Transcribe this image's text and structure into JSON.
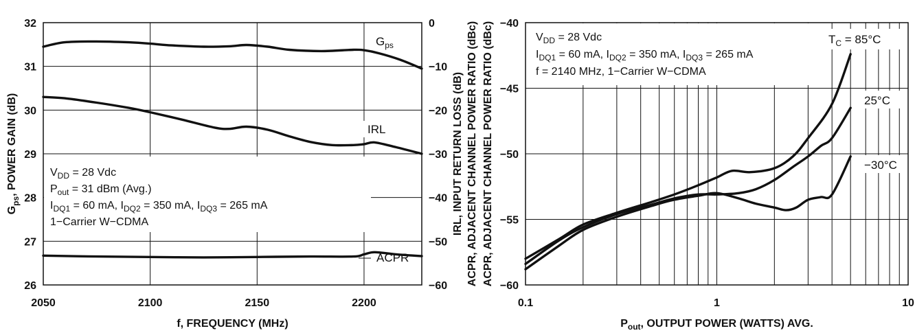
{
  "chart_data": [
    {
      "type": "line",
      "xlabel": "f, FREQUENCY (MHz)",
      "ylabel_left": "G_ps, POWER GAIN (dB)",
      "ylabel_right": [
        "IRL, INPUT RETURN LOSS (dB)",
        "ACPR, ADJACENT CHANNEL POWER RATIO (dBc)"
      ],
      "x_ticks": [
        "2050",
        "2100",
        "2150",
        "2200"
      ],
      "xlim": [
        2050,
        2227
      ],
      "y_left_ticks": [
        "32",
        "31",
        "30",
        "29",
        "28",
        "27",
        "26"
      ],
      "ylim_left": [
        26,
        32
      ],
      "y_right_ticks": [
        "0",
        "−10",
        "−20",
        "−30",
        "−40",
        "−50",
        "−60"
      ],
      "ylim_right": [
        -60,
        0
      ],
      "grid": true,
      "annotations": [
        {
          "lines": [
            [
              "V",
              "DD",
              " = 28 Vdc"
            ],
            [
              "P",
              "out",
              " = 31 dBm (Avg.)"
            ],
            [
              "I",
              "DQ1",
              " = 60 mA, I",
              "DQ2",
              " = 350 mA, I",
              "DQ3",
              " = 265 mA"
            ],
            [
              "1−Carrier W−CDMA"
            ]
          ]
        }
      ],
      "series": [
        {
          "name": "G_ps",
          "label": [
            "G",
            "ps"
          ],
          "axis": "left",
          "x": [
            2050,
            2060,
            2075,
            2090,
            2100,
            2110,
            2125,
            2137,
            2145,
            2155,
            2165,
            2180,
            2195,
            2200,
            2207,
            2217,
            2227
          ],
          "y": [
            31.45,
            31.55,
            31.57,
            31.55,
            31.52,
            31.48,
            31.45,
            31.46,
            31.49,
            31.45,
            31.38,
            31.35,
            31.38,
            31.37,
            31.3,
            31.15,
            30.95
          ]
        },
        {
          "name": "IRL",
          "label": [
            "IRL"
          ],
          "axis": "right",
          "x": [
            2050,
            2060,
            2075,
            2090,
            2100,
            2115,
            2130,
            2137,
            2145,
            2155,
            2165,
            2175,
            2185,
            2195,
            2200,
            2205,
            2215,
            2227
          ],
          "y": [
            -17.0,
            -17.3,
            -18.3,
            -19.5,
            -20.5,
            -22.2,
            -24.0,
            -24.3,
            -23.8,
            -24.5,
            -26.0,
            -27.3,
            -28.0,
            -28.0,
            -27.8,
            -27.4,
            -28.5,
            -30.0
          ]
        },
        {
          "name": "ACPR",
          "label": [
            "ACPR"
          ],
          "axis": "right",
          "x": [
            2050,
            2075,
            2100,
            2125,
            2150,
            2175,
            2195,
            2200,
            2205,
            2215,
            2227
          ],
          "y": [
            -53.3,
            -53.5,
            -53.6,
            -53.7,
            -53.6,
            -53.5,
            -53.5,
            -53.0,
            -52.5,
            -53.0,
            -53.4
          ]
        }
      ]
    },
    {
      "type": "line",
      "x_scale": "log",
      "xlabel": "P_out, OUTPUT POWER (WATTS) AVG.",
      "ylabel": "ACPR, ADJACENT CHANNEL POWER RATIO (dBc)",
      "x_ticks": [
        "0.1",
        "1",
        "10"
      ],
      "xlim": [
        0.1,
        10
      ],
      "y_ticks": [
        "−40",
        "−45",
        "−50",
        "−55",
        "−60"
      ],
      "ylim": [
        -60,
        -40
      ],
      "grid": true,
      "annotations": [
        {
          "lines": [
            [
              "V",
              "DD",
              " = 28 Vdc"
            ],
            [
              "I",
              "DQ1",
              " = 60 mA, I",
              "DQ2",
              " = 350 mA, I",
              "DQ3",
              " = 265 mA"
            ],
            [
              "f = 2140 MHz, 1−Carrier W−CDMA"
            ]
          ]
        }
      ],
      "series": [
        {
          "name": "T_C = 85°C",
          "label": [
            "T",
            "C",
            " = 85°C"
          ],
          "x": [
            0.1,
            0.15,
            0.2,
            0.3,
            0.45,
            0.6,
            0.8,
            1.0,
            1.2,
            1.5,
            2.0,
            2.5,
            3.0,
            4.0,
            5.0
          ],
          "y": [
            -58.0,
            -56.5,
            -55.4,
            -54.5,
            -53.7,
            -53.1,
            -52.4,
            -51.8,
            -51.3,
            -51.4,
            -51.1,
            -50.2,
            -48.8,
            -46.2,
            -42.4
          ]
        },
        {
          "name": "25°C",
          "label": [
            "25°C"
          ],
          "x": [
            0.1,
            0.15,
            0.2,
            0.3,
            0.45,
            0.6,
            0.8,
            1.0,
            1.3,
            1.6,
            2.0,
            2.5,
            3.0,
            3.5,
            4.0,
            5.0
          ],
          "y": [
            -58.4,
            -56.6,
            -55.6,
            -54.6,
            -53.9,
            -53.4,
            -53.1,
            -53.1,
            -53.0,
            -52.7,
            -52.0,
            -51.0,
            -50.2,
            -49.4,
            -48.8,
            -46.5
          ]
        },
        {
          "name": "−30°C",
          "label": [
            "−30°C"
          ],
          "x": [
            0.1,
            0.15,
            0.2,
            0.3,
            0.45,
            0.6,
            0.8,
            1.0,
            1.3,
            1.6,
            2.0,
            2.3,
            2.6,
            3.0,
            3.5,
            4.0,
            5.0
          ],
          "y": [
            -58.8,
            -57.0,
            -55.8,
            -54.8,
            -54.0,
            -53.5,
            -53.2,
            -53.0,
            -53.4,
            -53.8,
            -54.1,
            -54.3,
            -54.1,
            -53.5,
            -53.3,
            -53.1,
            -50.2
          ]
        }
      ]
    }
  ]
}
